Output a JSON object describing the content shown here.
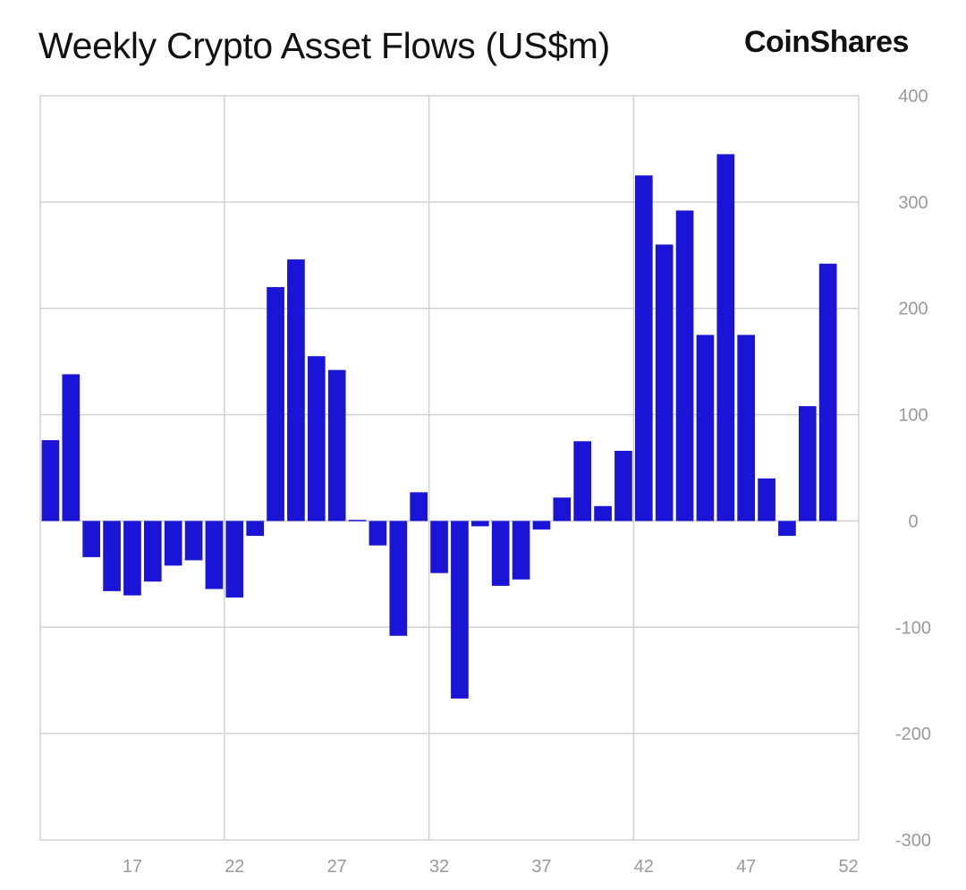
{
  "header": {
    "brand": "CoinShares"
  },
  "chart_data": {
    "type": "bar",
    "title": "Weekly Crypto Asset Flows (US$m)",
    "xlabel": "",
    "ylabel": "",
    "x": [
      13,
      14,
      15,
      16,
      17,
      18,
      19,
      20,
      21,
      22,
      23,
      24,
      25,
      26,
      27,
      28,
      29,
      30,
      31,
      32,
      33,
      34,
      35,
      36,
      37,
      38,
      39,
      40,
      41,
      42,
      43,
      44,
      45,
      46,
      47,
      48,
      49,
      50,
      51,
      52
    ],
    "values": [
      76,
      138,
      -34,
      -66,
      -70,
      -57,
      -42,
      -37,
      -64,
      -72,
      -14,
      220,
      246,
      155,
      142,
      1,
      -23,
      -108,
      27,
      -49,
      -167,
      -5,
      -61,
      -55,
      -8,
      22,
      75,
      14,
      66,
      325,
      260,
      292,
      175,
      345,
      175,
      40,
      -14,
      108,
      242,
      null
    ],
    "series_color": "#1a14d6",
    "ylim": [
      -300,
      400
    ],
    "yticks": [
      400,
      300,
      200,
      100,
      0,
      -100,
      -200,
      -300
    ],
    "xticks": [
      17,
      22,
      27,
      32,
      37,
      42,
      47,
      52
    ],
    "y_axis_side": "right",
    "grid": true
  }
}
